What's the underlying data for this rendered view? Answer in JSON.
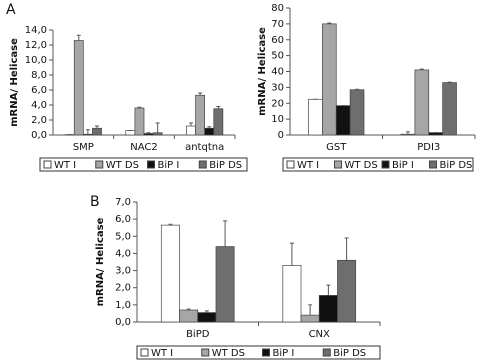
{
  "chart_data": [
    {
      "type": "bar",
      "panel_label": "A",
      "ylabel": "mRNA/ Helicase",
      "categories": [
        "SMP",
        "NAC2",
        "antqtna"
      ],
      "series": [
        {
          "name": "WT I",
          "color": "#ffffff",
          "values": [
            0.05,
            0.6,
            1.2
          ],
          "errors": [
            0,
            0,
            0.4
          ]
        },
        {
          "name": "WT DS",
          "color": "#a6a6a6",
          "values": [
            12.6,
            3.6,
            5.3
          ],
          "errors": [
            0.7,
            0.1,
            0.3
          ]
        },
        {
          "name": "BiP I",
          "color": "#111111",
          "values": [
            0.1,
            0.2,
            0.9
          ],
          "errors": [
            0.6,
            0.1,
            0.2
          ]
        },
        {
          "name": "BiP DS",
          "color": "#6e6e6e",
          "values": [
            0.9,
            0.3,
            3.5
          ],
          "errors": [
            0.3,
            1.3,
            0.3
          ]
        }
      ],
      "ylim": [
        0,
        14
      ],
      "yticks": [
        {
          "value": 0,
          "label": "0,0"
        },
        {
          "value": 2,
          "label": "2,0"
        },
        {
          "value": 4,
          "label": "4,0"
        },
        {
          "value": 6,
          "label": "6,0"
        },
        {
          "value": 8,
          "label": "8,0"
        },
        {
          "value": 10,
          "label": "10,0"
        },
        {
          "value": 12,
          "label": "12,0"
        },
        {
          "value": 14,
          "label": "14,0"
        }
      ]
    },
    {
      "type": "bar",
      "ylabel": "mRNA/ Helicase",
      "categories": [
        "GST",
        "PDI3"
      ],
      "series": [
        {
          "name": "WT I",
          "color": "#ffffff",
          "values": [
            22.5,
            0.5
          ],
          "errors": [
            0,
            1.5
          ]
        },
        {
          "name": "WT DS",
          "color": "#a6a6a6",
          "values": [
            70,
            41
          ],
          "errors": [
            0.5,
            0.5
          ]
        },
        {
          "name": "BiP I",
          "color": "#111111",
          "values": [
            18.5,
            1.5
          ],
          "errors": [
            0,
            0
          ]
        },
        {
          "name": "BiP DS",
          "color": "#6e6e6e",
          "values": [
            28.5,
            33
          ],
          "errors": [
            0.3,
            0.3
          ]
        }
      ],
      "ylim": [
        0,
        80
      ],
      "yticks": [
        0,
        10,
        20,
        30,
        40,
        50,
        60,
        70,
        80
      ]
    },
    {
      "type": "bar",
      "panel_label": "B",
      "ylabel": "mRNA/ Helicase",
      "categories": [
        "BiPD",
        "CNX"
      ],
      "series": [
        {
          "name": "WT I",
          "color": "#ffffff",
          "values": [
            5.65,
            3.3
          ],
          "errors": [
            0.05,
            1.3
          ]
        },
        {
          "name": "WT DS",
          "color": "#a6a6a6",
          "values": [
            0.7,
            0.4
          ],
          "errors": [
            0.05,
            0.6
          ]
        },
        {
          "name": "BiP I",
          "color": "#111111",
          "values": [
            0.55,
            1.55
          ],
          "errors": [
            0.1,
            0.6
          ]
        },
        {
          "name": "BiP DS",
          "color": "#6e6e6e",
          "values": [
            4.4,
            3.6
          ],
          "errors": [
            1.5,
            1.3
          ]
        }
      ],
      "ylim": [
        0,
        7
      ],
      "yticks": [
        {
          "value": 0,
          "label": "0,0"
        },
        {
          "value": 1,
          "label": "1,0"
        },
        {
          "value": 2,
          "label": "2,0"
        },
        {
          "value": 3,
          "label": "3,0"
        },
        {
          "value": 4,
          "label": "4,0"
        },
        {
          "value": 5,
          "label": "5,0"
        },
        {
          "value": 6,
          "label": "6,0"
        },
        {
          "value": 7,
          "label": "7,0"
        }
      ]
    }
  ]
}
